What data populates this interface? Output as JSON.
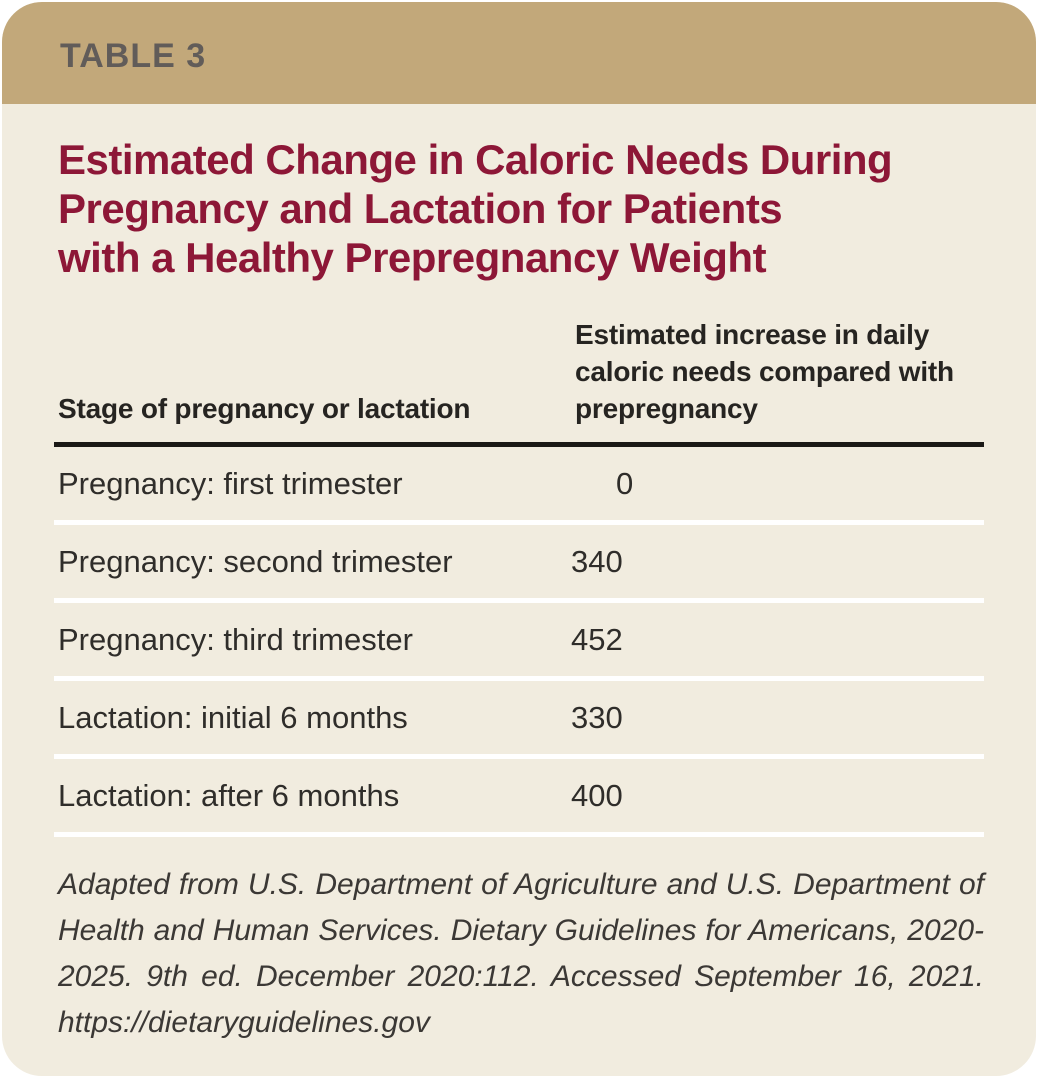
{
  "card": {
    "label": "TABLE 3",
    "title_lines": [
      "Estimated Change in Caloric Needs During",
      "Pregnancy and Lactation for Patients",
      "with a Healthy Prepregnancy Weight"
    ]
  },
  "table": {
    "col1_header": "Stage of pregnancy or lactation",
    "col2_header_lines": [
      "Estimated increase in daily",
      "caloric needs compared with",
      "prepregnancy"
    ],
    "rows": [
      {
        "stage": "Pregnancy: first trimester",
        "value": "0"
      },
      {
        "stage": "Pregnancy: second trimester",
        "value": "340"
      },
      {
        "stage": "Pregnancy: third trimester",
        "value": "452"
      },
      {
        "stage": "Lactation: initial 6 months",
        "value": "330"
      },
      {
        "stage": "Lactation: after 6 months",
        "value": "400"
      }
    ]
  },
  "footnote": "Adapted from U.S. Department of Agriculture and U.S. Department of Health and Human Services. Dietary Guidelines for Americans, 2020-2025. 9th ed. December 2020:112. Accessed September 16, 2021. https://dietaryguidelines.gov",
  "colors": {
    "header_tan": "#c2a87a",
    "body_cream": "#f1ecdf",
    "title_maroon": "#8d1737",
    "label_gray": "#615c59",
    "rule_black": "#1b1916",
    "row_separator_white": "#ffffff"
  }
}
